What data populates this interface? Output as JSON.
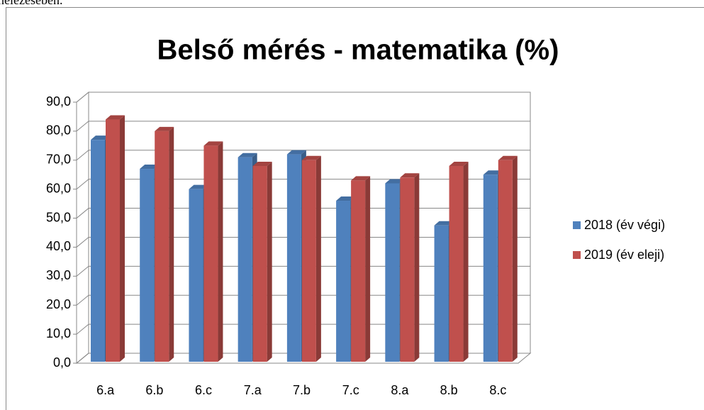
{
  "page_text": "ghelezésében.",
  "chart_data": {
    "type": "bar3d",
    "title": "Belső mérés - matematika (%)",
    "categories": [
      "6.a",
      "6.b",
      "6.c",
      "7.a",
      "7.b",
      "7.c",
      "8.a",
      "8.b",
      "8.c"
    ],
    "series": [
      {
        "name": "2018 (év végi)",
        "color": "#4f81bd",
        "values": [
          77,
          67,
          60,
          71,
          72,
          56,
          62,
          47.5,
          65
        ]
      },
      {
        "name": "2019 (év eleji)",
        "color": "#c0504d",
        "values": [
          84,
          80,
          75,
          68,
          70,
          63,
          64,
          68,
          70
        ]
      }
    ],
    "ylim": [
      0,
      90
    ],
    "yticks": [
      {
        "value": 0,
        "label": "0,0"
      },
      {
        "value": 10,
        "label": "10,0"
      },
      {
        "value": 20,
        "label": "20,0"
      },
      {
        "value": 30,
        "label": "30,0"
      },
      {
        "value": 40,
        "label": "40,0"
      },
      {
        "value": 50,
        "label": "50,0"
      },
      {
        "value": 60,
        "label": "60,0"
      },
      {
        "value": 70,
        "label": "70,0"
      },
      {
        "value": 80,
        "label": "80,0"
      },
      {
        "value": 90,
        "label": "90,0"
      }
    ],
    "grid": true,
    "legend": "right"
  }
}
